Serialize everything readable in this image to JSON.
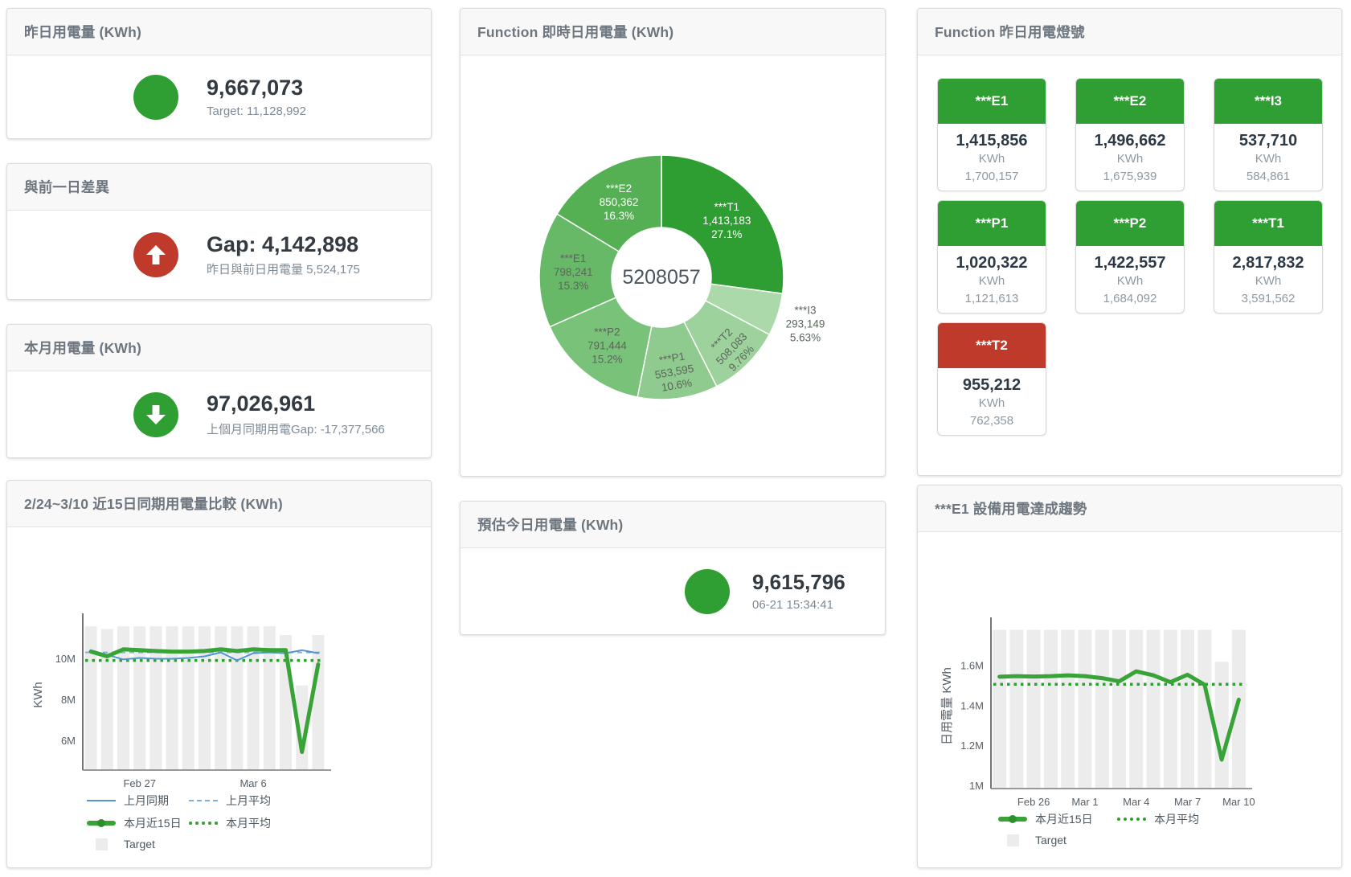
{
  "colors": {
    "green": "#2f9e33",
    "red": "#c03a2b",
    "blue": "#5595cc",
    "blue_light": "#7fb0dc",
    "green_line": "#38a336",
    "bar_gray": "#ececec"
  },
  "cards": {
    "yesterday": {
      "title": "昨日用電量 (KWh)",
      "value": "9,667,073",
      "sub": "Target: 11,128,992"
    },
    "gap": {
      "title": "與前一日差異",
      "value": "Gap: 4,142,898",
      "sub": "昨日與前日用電量 5,524,175"
    },
    "month": {
      "title": "本月用電量 (KWh)",
      "value": "97,026,961",
      "sub": "上個月同期用電Gap: -17,377,566"
    },
    "estimate": {
      "title": "預估今日用電量 (KWh)",
      "value": "9,615,796",
      "sub": "06-21 15:34:41"
    }
  },
  "lights": {
    "title": "Function 昨日用電燈號",
    "tiles": [
      {
        "name": "***E1",
        "value": "1,415,856",
        "unit": "KWh",
        "target": "1,700,157",
        "status": "green"
      },
      {
        "name": "***E2",
        "value": "1,496,662",
        "unit": "KWh",
        "target": "1,675,939",
        "status": "green"
      },
      {
        "name": "***I3",
        "value": "537,710",
        "unit": "KWh",
        "target": "584,861",
        "status": "green"
      },
      {
        "name": "***P1",
        "value": "1,020,322",
        "unit": "KWh",
        "target": "1,121,613",
        "status": "green"
      },
      {
        "name": "***P2",
        "value": "1,422,557",
        "unit": "KWh",
        "target": "1,684,092",
        "status": "green"
      },
      {
        "name": "***T1",
        "value": "2,817,832",
        "unit": "KWh",
        "target": "3,591,562",
        "status": "green"
      },
      {
        "name": "***T2",
        "value": "955,212",
        "unit": "KWh",
        "target": "762,358",
        "status": "red"
      }
    ]
  },
  "chart_data": [
    {
      "type": "pie",
      "title": "Function 即時日用電量 (KWh)",
      "center_label": "5208057",
      "legend_position": "none",
      "slices": [
        {
          "name": "***T1",
          "value": 1413183,
          "value_label": "1,413,183",
          "pct": "27.1%",
          "fraction": 27.1,
          "color": "#2e9d32",
          "label_pos": "inside",
          "label_color": "#ffffff",
          "label_r": 108,
          "rotate": 0
        },
        {
          "name": "***I3",
          "value": 293149,
          "value_label": "293,149",
          "pct": "5.63%",
          "fraction": 5.63,
          "color": "#abd9aa",
          "label_pos": "outside",
          "label_color": "#5a665b",
          "label_r": 188,
          "rotate": 0
        },
        {
          "name": "***T2",
          "value": 508083,
          "value_label": "508,083",
          "pct": "9.76%",
          "fraction": 9.76,
          "color": "#9ed29d",
          "label_pos": "inside",
          "label_color": "#5a665b",
          "label_r": 124,
          "rotate": -46
        },
        {
          "name": "***P1",
          "value": 553595,
          "value_label": "553,595",
          "pct": "10.6%",
          "fraction": 10.6,
          "color": "#8fca8e",
          "label_pos": "inside",
          "label_color": "#5a665b",
          "label_r": 118,
          "rotate": -10
        },
        {
          "name": "***P2",
          "value": 791444,
          "value_label": "791,444",
          "pct": "15.2%",
          "fraction": 15.2,
          "color": "#79c279",
          "label_pos": "inside",
          "label_color": "#5a665b",
          "label_r": 108,
          "rotate": 0
        },
        {
          "name": "***E1",
          "value": 798241,
          "value_label": "798,241",
          "pct": "15.3%",
          "fraction": 15.3,
          "color": "#67b967",
          "label_pos": "inside",
          "label_color": "#5a665b",
          "label_r": 110,
          "rotate": 0
        },
        {
          "name": "***E2",
          "value": 850362,
          "value_label": "850,362",
          "pct": "16.3%",
          "fraction": 16.3,
          "color": "#55b054",
          "label_pos": "inside",
          "label_color": "#ffffff",
          "label_r": 108,
          "rotate": 0
        }
      ]
    },
    {
      "type": "line+bar",
      "title": "2/24~3/10 近15日同期用電量比較 (KWh)",
      "ylabel": "KWh",
      "ylim": [
        4580000,
        11900000
      ],
      "grid": false,
      "yticks": [
        {
          "v": 6000000,
          "label": "6M"
        },
        {
          "v": 8000000,
          "label": "8M"
        },
        {
          "v": 10000000,
          "label": "10M"
        }
      ],
      "xticks": [
        {
          "i": 3,
          "label": "Feb 27"
        },
        {
          "i": 10,
          "label": "Mar 6"
        }
      ],
      "bars": {
        "name": "Target",
        "color": "#ececec",
        "values": [
          11580000,
          11450000,
          11580000,
          11580000,
          11580000,
          11580000,
          11580000,
          11580000,
          11580000,
          11580000,
          11580000,
          11580000,
          11160000,
          8700000,
          11160000
        ]
      },
      "hlines": [
        {
          "name": "上月平均",
          "value": 10310000,
          "color": "#7fb0dc",
          "width": 2,
          "dash": "6 5"
        },
        {
          "name": "本月平均",
          "value": 9920000,
          "color": "#2f9e33",
          "width": 3.5,
          "dash": "3.5 5"
        }
      ],
      "lines": [
        {
          "name": "上月同期",
          "color": "#5595cc",
          "width": 2,
          "values": [
            10420000,
            10190000,
            9970000,
            10040000,
            10000000,
            10000000,
            10040000,
            10120000,
            10310000,
            9920000,
            10270000,
            10310000,
            10270000,
            10420000,
            10270000
          ]
        },
        {
          "name": "本月近15日",
          "color": "#38a336",
          "width": 5,
          "values": [
            10350000,
            10120000,
            10460000,
            10420000,
            10380000,
            10350000,
            10350000,
            10380000,
            10460000,
            10380000,
            10460000,
            10420000,
            10420000,
            5460000,
            9730000
          ]
        }
      ],
      "legend": [
        [
          {
            "type": "blue-line",
            "label": "上月同期"
          },
          {
            "type": "blue-dash",
            "label": "上月平均"
          }
        ],
        [
          {
            "type": "green-line",
            "label": "本月近15日"
          },
          {
            "type": "green-dot",
            "label": "本月平均"
          }
        ],
        [
          {
            "type": "gray-square",
            "label": "Target"
          }
        ]
      ]
    },
    {
      "type": "line+bar",
      "title": "***E1 設備用電達成趨勢",
      "ylabel": "日用電量 KWh",
      "ylim": [
        985000,
        1810000
      ],
      "grid": false,
      "yticks": [
        {
          "v": 1000000,
          "label": "1M"
        },
        {
          "v": 1200000,
          "label": "1.2M"
        },
        {
          "v": 1400000,
          "label": "1.4M"
        },
        {
          "v": 1600000,
          "label": "1.6M"
        }
      ],
      "xticks": [
        {
          "i": 2,
          "label": "Feb 26"
        },
        {
          "i": 5,
          "label": "Mar 1"
        },
        {
          "i": 8,
          "label": "Mar 4"
        },
        {
          "i": 11,
          "label": "Mar 7"
        },
        {
          "i": 14,
          "label": "Mar 10"
        }
      ],
      "bars": {
        "name": "Target",
        "color": "#ececec",
        "values": [
          1780000,
          1780000,
          1780000,
          1780000,
          1780000,
          1780000,
          1780000,
          1780000,
          1780000,
          1780000,
          1780000,
          1780000,
          1780000,
          1620000,
          1780000
        ]
      },
      "hlines": [
        {
          "name": "本月平均",
          "value": 1507000,
          "color": "#2f9e33",
          "width": 3.5,
          "dash": "3.5 5"
        }
      ],
      "lines": [
        {
          "name": "本月近15日",
          "color": "#38a336",
          "width": 5,
          "values": [
            1545000,
            1548000,
            1546000,
            1548000,
            1552000,
            1548000,
            1538000,
            1522000,
            1572000,
            1552000,
            1518000,
            1555000,
            1505000,
            1130000,
            1430000
          ]
        }
      ],
      "legend": [
        [
          {
            "type": "green-line",
            "label": "本月近15日"
          },
          {
            "type": "green-dot",
            "label": "本月平均"
          }
        ],
        [
          {
            "type": "gray-square",
            "label": "Target"
          }
        ]
      ]
    }
  ]
}
